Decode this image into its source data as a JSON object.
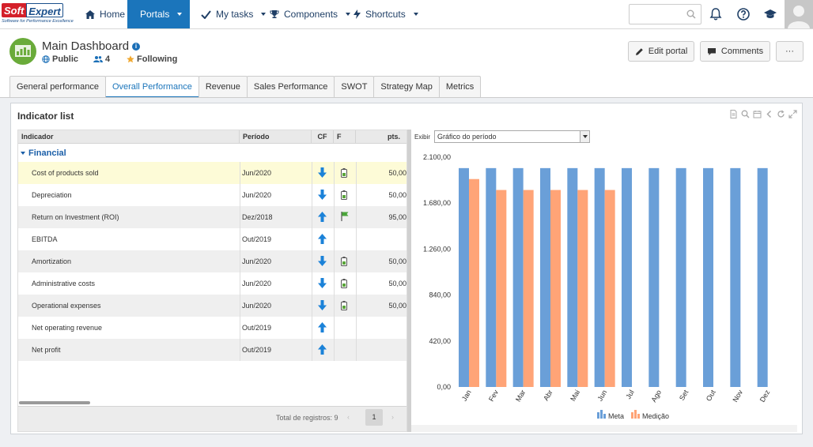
{
  "brand": {
    "name_a": "Soft",
    "name_b": "Expert",
    "tagline": "Software for Performance Excellence"
  },
  "nav": {
    "home": "Home",
    "portals": "Portals",
    "my_tasks": "My tasks",
    "components": "Components",
    "shortcuts": "Shortcuts",
    "search_value": ""
  },
  "header": {
    "title": "Main Dashboard",
    "visibility": "Public",
    "members": "4",
    "following": "Following",
    "edit_portal": "Edit portal",
    "comments": "Comments",
    "more": "···"
  },
  "tabs": [
    "General performance",
    "Overall Performance",
    "Revenue",
    "Sales Performance",
    "SWOT",
    "Strategy Map",
    "Metrics"
  ],
  "active_tab": 1,
  "panel": {
    "title": "Indicator list"
  },
  "grid": {
    "columns": {
      "indicador": "Indicador",
      "periodo": "Período",
      "cf": "CF",
      "f": "F",
      "pts": "pts."
    },
    "group": "Financial",
    "rows": [
      {
        "name": "Cost of products sold",
        "period": "Jun/2020",
        "trend": "down",
        "status": "battery",
        "pts": "50,00"
      },
      {
        "name": "Depreciation",
        "period": "Jun/2020",
        "trend": "down",
        "status": "battery",
        "pts": "50,00"
      },
      {
        "name": "Return on Investment (ROI)",
        "period": "Dez/2018",
        "trend": "up",
        "status": "flag",
        "pts": "95,00"
      },
      {
        "name": "EBITDA",
        "period": "Out/2019",
        "trend": "up",
        "status": "",
        "pts": ""
      },
      {
        "name": "Amortization",
        "period": "Jun/2020",
        "trend": "down",
        "status": "battery",
        "pts": "50,00"
      },
      {
        "name": "Administrative costs",
        "period": "Jun/2020",
        "trend": "down",
        "status": "battery",
        "pts": "50,00"
      },
      {
        "name": "Operational expenses",
        "period": "Jun/2020",
        "trend": "down",
        "status": "battery",
        "pts": "50,00"
      },
      {
        "name": "Net operating revenue",
        "period": "Out/2019",
        "trend": "up",
        "status": "",
        "pts": ""
      },
      {
        "name": "Net profit",
        "period": "Out/2019",
        "trend": "up",
        "status": "",
        "pts": ""
      }
    ],
    "footer": {
      "total_label": "Total de registros: 9",
      "page": "1"
    }
  },
  "chart_control": {
    "label": "Exibir",
    "selected": "Gráfico do período"
  },
  "colors": {
    "accent": "#1b75bb",
    "meta": "#6a9fd8",
    "medicao": "#ffa477",
    "trend": "#1b82d8"
  },
  "chart_data": {
    "type": "bar",
    "categories": [
      "Jan",
      "Fev",
      "Mar",
      "Abr",
      "Mai",
      "Jun",
      "Jul",
      "Ago",
      "Set",
      "Out",
      "Nov",
      "Dez"
    ],
    "series": [
      {
        "name": "Meta",
        "values": [
          2000,
          2000,
          2000,
          2000,
          2000,
          2000,
          2000,
          2000,
          2000,
          2000,
          2000,
          2000
        ]
      },
      {
        "name": "Medição",
        "values": [
          1900,
          1800,
          1800,
          1800,
          1800,
          1800,
          null,
          null,
          null,
          null,
          null,
          null
        ]
      }
    ],
    "yticks": [
      "0,00",
      "420,00",
      "840,00",
      "1.260,00",
      "1.680,00",
      "2.100,00"
    ],
    "ylim": [
      0,
      2100
    ],
    "legend": "bottom-center"
  }
}
